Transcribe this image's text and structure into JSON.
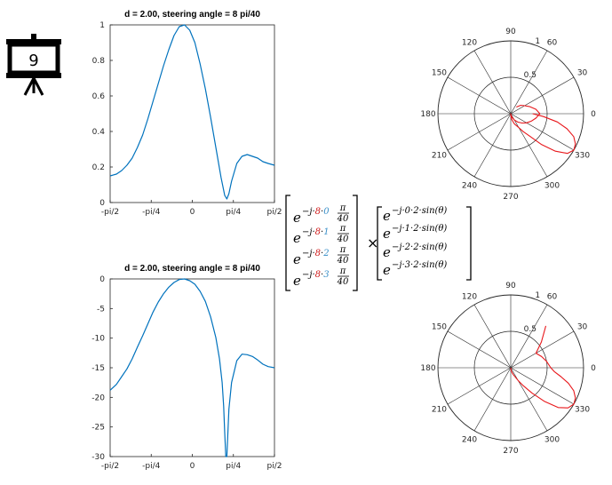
{
  "slide_number": "9",
  "colors": {
    "curve": "#0072BD",
    "polar": "#E8171B",
    "red": "#d02020",
    "blue": "#3a8fc8",
    "axis": "#262626"
  },
  "icons": {
    "presentation": "presentation-board-icon"
  },
  "chart_data": [
    {
      "type": "line",
      "title": "d = 2.00, steering angle  = 8 pi/40",
      "xlabel": "",
      "ylabel": "",
      "xlim": [
        -1.5708,
        1.5708
      ],
      "ylim": [
        0,
        1
      ],
      "xticks": [
        "-pi/2",
        "-pi/4",
        "0",
        "pi/4",
        "pi/2"
      ],
      "yticks": [
        "0",
        "0.2",
        "0.4",
        "0.6",
        "0.8",
        "1"
      ],
      "series": [
        {
          "x": [
            -1.5708,
            -1.45,
            -1.35,
            -1.25,
            -1.15,
            -1.05,
            -0.95,
            -0.85,
            -0.75,
            -0.65,
            -0.55,
            -0.45,
            -0.35,
            -0.25,
            -0.15,
            -0.05,
            0.05,
            0.15,
            0.25,
            0.35,
            0.45,
            0.55,
            0.62,
            0.66,
            0.7,
            0.75,
            0.85,
            0.95,
            1.05,
            1.15,
            1.25,
            1.35,
            1.45,
            1.5708
          ],
          "y": [
            0.15,
            0.16,
            0.18,
            0.21,
            0.25,
            0.31,
            0.38,
            0.47,
            0.57,
            0.67,
            0.77,
            0.86,
            0.94,
            0.99,
            1.0,
            0.97,
            0.9,
            0.78,
            0.64,
            0.48,
            0.31,
            0.14,
            0.04,
            0.02,
            0.05,
            0.12,
            0.22,
            0.26,
            0.27,
            0.26,
            0.25,
            0.23,
            0.22,
            0.21
          ]
        }
      ]
    },
    {
      "type": "line",
      "title": "d = 2.00, steering angle  = 8 pi/40",
      "xlabel": "",
      "ylabel": "",
      "xlim": [
        -1.5708,
        1.5708
      ],
      "ylim": [
        -30,
        0
      ],
      "xticks": [
        "-pi/2",
        "-pi/4",
        "0",
        "pi/4",
        "pi/2"
      ],
      "yticks": [
        "-30",
        "-25",
        "-20",
        "-15",
        "-10",
        "-5",
        "0"
      ],
      "series": [
        {
          "x": [
            -1.5708,
            -1.45,
            -1.35,
            -1.25,
            -1.15,
            -1.05,
            -0.95,
            -0.85,
            -0.75,
            -0.65,
            -0.55,
            -0.45,
            -0.35,
            -0.25,
            -0.15,
            -0.05,
            0.05,
            0.15,
            0.25,
            0.35,
            0.45,
            0.52,
            0.57,
            0.6,
            0.62,
            0.64,
            0.66,
            0.7,
            0.75,
            0.85,
            0.95,
            1.05,
            1.15,
            1.25,
            1.35,
            1.45,
            1.5708
          ],
          "y": [
            -18.8,
            -17.8,
            -16.5,
            -15.2,
            -13.5,
            -11.5,
            -9.6,
            -7.6,
            -5.6,
            -3.9,
            -2.5,
            -1.4,
            -0.6,
            -0.1,
            0.0,
            -0.3,
            -0.9,
            -2.1,
            -3.8,
            -6.4,
            -9.9,
            -13.5,
            -17.5,
            -21.5,
            -26.0,
            -30.0,
            -30.0,
            -22.0,
            -17.5,
            -13.8,
            -12.7,
            -12.8,
            -13.1,
            -13.7,
            -14.4,
            -14.8,
            -15.0
          ]
        }
      ]
    },
    {
      "type": "polar",
      "rlim": [
        0,
        1
      ],
      "rticks": [
        "0.5",
        "1"
      ],
      "angle_ticks": [
        "0",
        "30",
        "60",
        "90",
        "120",
        "150",
        "180",
        "210",
        "240",
        "270",
        "300",
        "330"
      ],
      "series": [
        {
          "angle_deg": [
            0,
            -5,
            -10,
            -15,
            -20,
            -25,
            -30,
            -35,
            -40,
            -45,
            -50,
            -55,
            -60,
            -70,
            -80,
            -90,
            -100,
            -90,
            -80,
            -70,
            -60,
            -50,
            -40,
            -30,
            -20,
            -10,
            0,
            10,
            20,
            30,
            40,
            50
          ],
          "r": [
            0.3,
            0.45,
            0.65,
            0.8,
            0.92,
            0.98,
            1.0,
            0.95,
            0.8,
            0.6,
            0.4,
            0.3,
            0.22,
            0.15,
            0.08,
            0.02,
            0.0,
            0.0,
            0.02,
            0.05,
            0.1,
            0.15,
            0.2,
            0.25,
            0.3,
            0.35,
            0.4,
            0.35,
            0.28,
            0.22,
            0.18,
            0.12
          ]
        }
      ]
    },
    {
      "type": "polar",
      "rlim": [
        0,
        1
      ],
      "rticks": [
        "0.5",
        "1"
      ],
      "angle_ticks": [
        "0",
        "30",
        "60",
        "90",
        "120",
        "150",
        "180",
        "210",
        "240",
        "270",
        "300",
        "330"
      ],
      "series": [
        {
          "angle_deg": [
            50,
            40,
            30,
            20,
            10,
            0,
            -5,
            -10,
            -15,
            -20,
            -25,
            -30,
            -35,
            -40,
            -45,
            -50,
            -55,
            -60,
            -70,
            -80,
            -90
          ],
          "r": [
            0.75,
            0.55,
            0.4,
            0.45,
            0.5,
            0.55,
            0.6,
            0.7,
            0.82,
            0.92,
            0.98,
            1.0,
            0.96,
            0.85,
            0.65,
            0.45,
            0.3,
            0.2,
            0.1,
            0.05,
            0.0
          ]
        }
      ]
    }
  ],
  "equation": {
    "left": [
      "e^{-j·8·0 π/40}",
      "e^{-j·8·1 π/40}",
      "e^{-j·8·2 π/40}",
      "e^{-j·8·3 π/40}"
    ],
    "times": "×",
    "right": [
      "e^{-j·0·2·sin(θ)}",
      "e^{-j·1·2·sin(θ)}",
      "e^{-j·2·2·sin(θ)}",
      "e^{-j·3·2·sin(θ)}"
    ],
    "base": "e",
    "neg_j": "−j·",
    "steer": "8",
    "dot": "·",
    "indices": [
      "0",
      "1",
      "2",
      "3"
    ],
    "pi": "π",
    "denom": "40",
    "right_terms": [
      "−j·0·2·sin(θ)",
      "−j·1·2·sin(θ)",
      "−j·2·2·sin(θ)",
      "−j·3·2·sin(θ)"
    ]
  }
}
